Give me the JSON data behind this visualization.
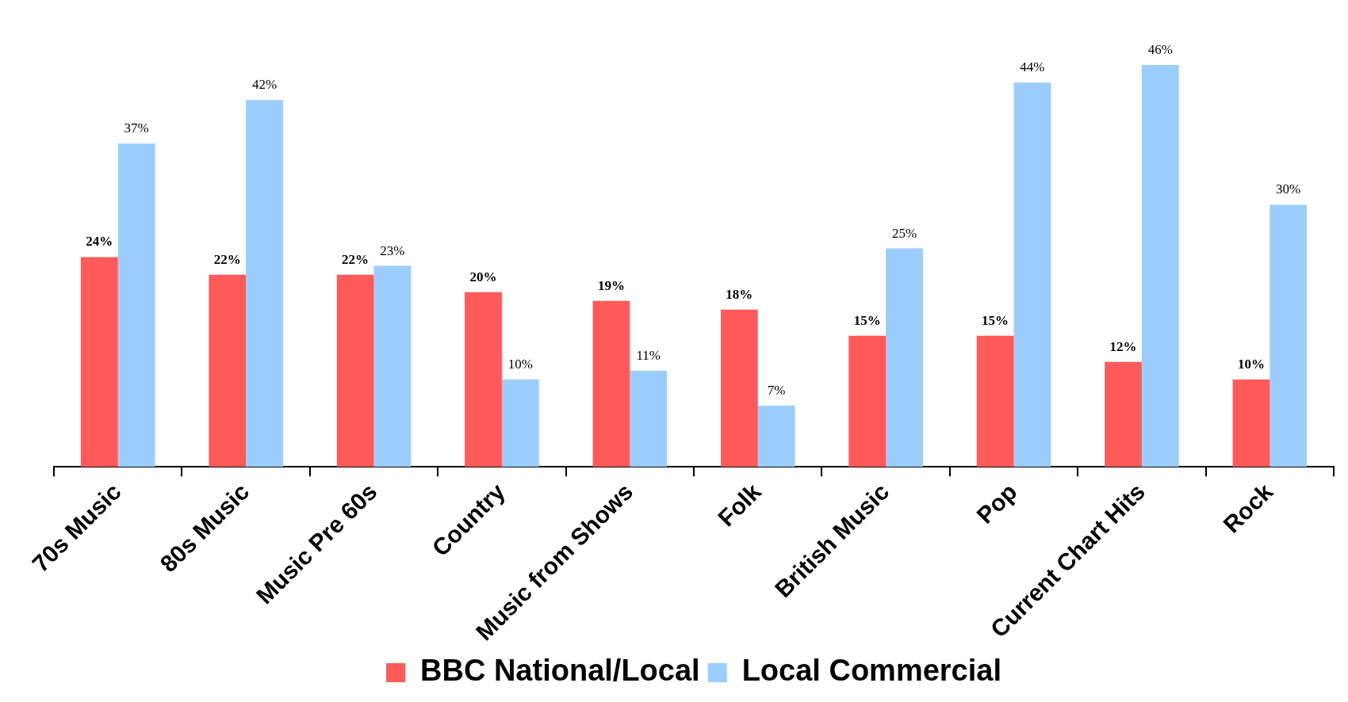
{
  "chart_data": {
    "type": "bar",
    "categories": [
      "70s Music",
      "80s Music",
      "Music Pre 60s",
      "Country",
      "Music from Shows",
      "Folk",
      "British Music",
      "Pop",
      "Current Chart Hits",
      "Rock"
    ],
    "series": [
      {
        "name": "BBC National/Local",
        "color": "#ff5a5a",
        "values": [
          24,
          22,
          22,
          20,
          19,
          18,
          15,
          15,
          12,
          10
        ],
        "value_labels": [
          "24%",
          "22%",
          "22%",
          "20%",
          "19%",
          "18%",
          "15%",
          "15%",
          "12%",
          "10%"
        ]
      },
      {
        "name": "Local Commercial",
        "color": "#9ccdff",
        "values": [
          37,
          42,
          23,
          10,
          11,
          7,
          25,
          44,
          46,
          30
        ],
        "value_labels": [
          "37%",
          "42%",
          "23%",
          "10%",
          "11%",
          "7%",
          "25%",
          "44%",
          "46%",
          "30%"
        ]
      }
    ],
    "legend": "bottom",
    "grid": false
  }
}
